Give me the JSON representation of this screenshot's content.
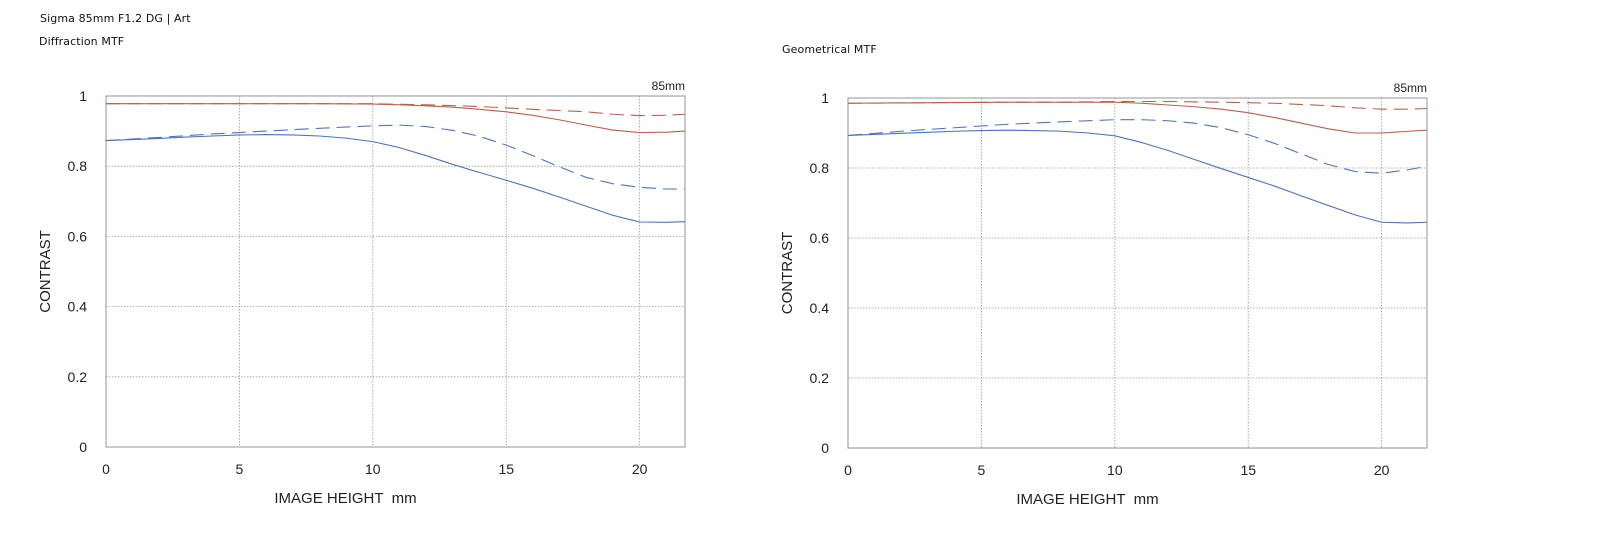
{
  "header": {
    "product": "Sigma 85mm F1.2 DG | Art"
  },
  "chart_data": [
    {
      "type": "line",
      "title": "Diffraction MTF",
      "annotation": "85mm",
      "xlabel": "IMAGE HEIGHT  mm",
      "ylabel": "CONTRAST",
      "xlim": [
        0,
        21.7
      ],
      "ylim": [
        0,
        1
      ],
      "xticks": [
        "0",
        "5",
        "10",
        "15",
        "20"
      ],
      "yticks": [
        "0",
        "0.2",
        "0.4",
        "0.6",
        "0.8",
        "1"
      ],
      "grid": true,
      "series": [
        {
          "color": "#b8614a",
          "style": "solid",
          "x": [
            0,
            2,
            4,
            6,
            8,
            10,
            11,
            12,
            13,
            14,
            15,
            16,
            17,
            18,
            19,
            20,
            21,
            21.7
          ],
          "values": [
            0.978,
            0.978,
            0.978,
            0.978,
            0.978,
            0.977,
            0.975,
            0.972,
            0.968,
            0.962,
            0.955,
            0.945,
            0.932,
            0.917,
            0.903,
            0.896,
            0.897,
            0.9
          ]
        },
        {
          "color": "#b8614a",
          "style": "dashed",
          "x": [
            0,
            2,
            4,
            6,
            8,
            10,
            12,
            14,
            16,
            18,
            19,
            20,
            21,
            21.7
          ],
          "values": [
            0.978,
            0.978,
            0.978,
            0.978,
            0.978,
            0.978,
            0.975,
            0.97,
            0.962,
            0.955,
            0.948,
            0.944,
            0.945,
            0.948
          ]
        },
        {
          "color": "#4f74b8",
          "style": "solid",
          "x": [
            0,
            1,
            2,
            3,
            4,
            5,
            6,
            7,
            8,
            9,
            10,
            11,
            12,
            13,
            14,
            15,
            16,
            17,
            18,
            19,
            20,
            21,
            21.7
          ],
          "values": [
            0.873,
            0.876,
            0.879,
            0.883,
            0.886,
            0.889,
            0.89,
            0.889,
            0.886,
            0.88,
            0.87,
            0.853,
            0.83,
            0.805,
            0.782,
            0.76,
            0.737,
            0.712,
            0.686,
            0.66,
            0.641,
            0.64,
            0.642
          ]
        },
        {
          "color": "#4f74b8",
          "style": "dashed",
          "x": [
            0,
            2,
            4,
            6,
            8,
            10,
            11,
            12,
            13,
            14,
            15,
            16,
            17,
            18,
            19,
            20,
            21,
            21.7
          ],
          "values": [
            0.873,
            0.882,
            0.892,
            0.9,
            0.908,
            0.915,
            0.917,
            0.913,
            0.902,
            0.885,
            0.86,
            0.83,
            0.798,
            0.768,
            0.75,
            0.74,
            0.735,
            0.735
          ]
        }
      ]
    },
    {
      "type": "line",
      "title": "Geometrical MTF",
      "annotation": "85mm",
      "xlabel": "IMAGE HEIGHT  mm",
      "ylabel": "CONTRAST",
      "xlim": [
        0,
        21.7
      ],
      "ylim": [
        0,
        1
      ],
      "xticks": [
        "0",
        "5",
        "10",
        "15",
        "20"
      ],
      "yticks": [
        "0",
        "0.2",
        "0.4",
        "0.6",
        "0.8",
        "1"
      ],
      "grid": true,
      "series": [
        {
          "color": "#b8614a",
          "style": "solid",
          "x": [
            0,
            2,
            4,
            6,
            8,
            10,
            11,
            12,
            13,
            14,
            15,
            16,
            17,
            18,
            19,
            20,
            21,
            21.7
          ],
          "values": [
            0.985,
            0.986,
            0.987,
            0.988,
            0.988,
            0.988,
            0.985,
            0.98,
            0.975,
            0.968,
            0.958,
            0.944,
            0.928,
            0.912,
            0.9,
            0.9,
            0.905,
            0.908
          ]
        },
        {
          "color": "#b8614a",
          "style": "dashed",
          "x": [
            0,
            2,
            4,
            6,
            8,
            10,
            12,
            14,
            16,
            18,
            19,
            20,
            21,
            21.7
          ],
          "values": [
            0.985,
            0.986,
            0.987,
            0.988,
            0.988,
            0.99,
            0.99,
            0.988,
            0.985,
            0.978,
            0.972,
            0.968,
            0.968,
            0.97
          ]
        },
        {
          "color": "#4f74b8",
          "style": "solid",
          "x": [
            0,
            1,
            2,
            3,
            4,
            5,
            6,
            7,
            8,
            9,
            10,
            11,
            12,
            13,
            14,
            15,
            16,
            17,
            18,
            19,
            20,
            21,
            21.7
          ],
          "values": [
            0.893,
            0.896,
            0.899,
            0.902,
            0.905,
            0.907,
            0.908,
            0.907,
            0.905,
            0.9,
            0.892,
            0.873,
            0.85,
            0.824,
            0.798,
            0.773,
            0.748,
            0.72,
            0.693,
            0.666,
            0.645,
            0.643,
            0.645
          ]
        },
        {
          "color": "#4f74b8",
          "style": "dashed",
          "x": [
            0,
            2,
            4,
            6,
            8,
            10,
            11,
            12,
            13,
            14,
            15,
            16,
            17,
            18,
            19,
            20,
            21,
            21.7
          ],
          "values": [
            0.893,
            0.905,
            0.915,
            0.925,
            0.932,
            0.938,
            0.938,
            0.935,
            0.928,
            0.915,
            0.895,
            0.87,
            0.84,
            0.81,
            0.79,
            0.785,
            0.795,
            0.805
          ]
        }
      ]
    }
  ]
}
